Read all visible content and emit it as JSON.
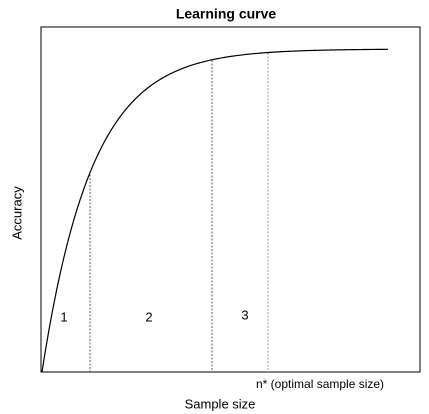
{
  "title": "Learning curve",
  "x_axis_label": "Sample size",
  "y_axis_label": "Accuracy",
  "regions": [
    "1",
    "2",
    "3"
  ],
  "annotation": "n* (optimal sample size)"
}
